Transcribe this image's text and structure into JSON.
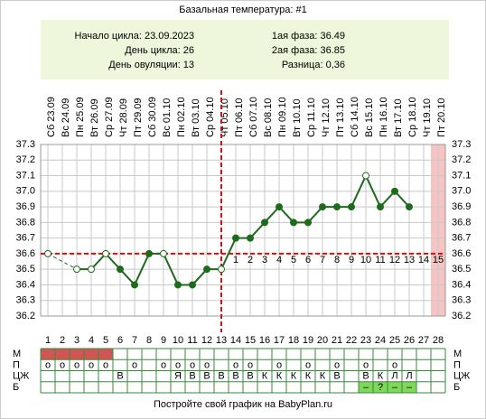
{
  "chart_data": {
    "type": "line",
    "title": "Базальная температура: #1",
    "info": {
      "cycle_start": "Начало цикла: 23.09.2023",
      "cycle_day": "День цикла: 26",
      "ovulation": "День овуляции: 13",
      "phase1": "1ая фаза: 36.49",
      "phase2": "2ая фаза: 36.85",
      "difference": "Разница: 0,36"
    },
    "categories": [
      "Сб 23.09",
      "Вс 24.09",
      "Пн 25.09",
      "Вт 26.09",
      "Ср 27.09",
      "Чт 28.09",
      "Пт 29.09",
      "Сб 30.09",
      "Вс 01.10",
      "Пн 02.10",
      "Вт 03.10",
      "Ср 04.10",
      "Чт 05.10",
      "Пт 06.10",
      "Сб 07.10",
      "Вс 08.10",
      "Пн 09.10",
      "Вт 10.10",
      "Ср 11.10",
      "Чт 12.10",
      "Пт 13.10",
      "Сб 14.10",
      "Вс 15.10",
      "Пн 16.10",
      "Вт 17.10",
      "Ср 18.10",
      "Чт 19.10",
      "Пт 20.10"
    ],
    "day_numbers": [
      1,
      2,
      3,
      4,
      5,
      6,
      7,
      8,
      9,
      10,
      11,
      12,
      13,
      14,
      15,
      16,
      17,
      18,
      19,
      20,
      21,
      22,
      23,
      24,
      25,
      26,
      27,
      28
    ],
    "values": [
      36.6,
      null,
      36.5,
      36.5,
      36.6,
      36.5,
      36.4,
      36.6,
      36.6,
      36.4,
      36.4,
      36.5,
      36.5,
      36.7,
      36.7,
      36.8,
      36.9,
      36.8,
      36.8,
      36.9,
      36.9,
      36.9,
      37.1,
      36.9,
      37.0,
      36.9,
      null,
      null
    ],
    "hollow": [
      true,
      false,
      true,
      true,
      true,
      false,
      false,
      false,
      true,
      false,
      false,
      false,
      true,
      false,
      false,
      false,
      false,
      false,
      false,
      false,
      false,
      false,
      true,
      false,
      false,
      false,
      false,
      false
    ],
    "color": "#1e6b1e",
    "ylim": [
      36.2,
      37.3
    ],
    "yticks": [
      36.2,
      36.3,
      36.4,
      36.5,
      36.6,
      36.7,
      36.8,
      36.9,
      {
        "value": 37.0,
        "label": "37.0"
      },
      37.1,
      37.2,
      37.3
    ],
    "grid": true,
    "cover_line": 36.6,
    "ovulation_day": 13,
    "highlight_days": [
      28
    ],
    "phase2_counts": [
      1,
      2,
      3,
      4,
      5,
      6,
      7,
      8,
      9,
      10,
      11,
      12,
      13,
      14,
      15
    ],
    "rows": {
      "labels": [
        "М",
        "П",
        "ЦЖ",
        "Б"
      ],
      "menstruation_days": [
        1,
        2,
        3,
        4,
        5
      ],
      "P": [
        "о",
        "о",
        "о",
        "о",
        "о",
        null,
        "о",
        null,
        "о",
        "о",
        "о",
        "о",
        null,
        "о",
        "о",
        null,
        "о",
        null,
        "о",
        null,
        "о",
        null,
        "о",
        null,
        "о",
        null,
        null,
        null
      ],
      "CJ": [
        null,
        null,
        null,
        null,
        null,
        "В",
        null,
        null,
        null,
        "Я",
        "В",
        "В",
        "В",
        "В",
        "В",
        "К",
        "К",
        "К",
        "К",
        "К",
        "В",
        null,
        "В",
        "К",
        "Л",
        "Л",
        null,
        null
      ],
      "B": [
        null,
        null,
        null,
        null,
        null,
        null,
        null,
        null,
        null,
        null,
        null,
        null,
        null,
        null,
        null,
        null,
        null,
        null,
        null,
        null,
        null,
        null,
        "–",
        "?",
        "–",
        "–",
        null,
        null
      ]
    },
    "footer": "Постройте свой график на BabyPlan.ru"
  }
}
